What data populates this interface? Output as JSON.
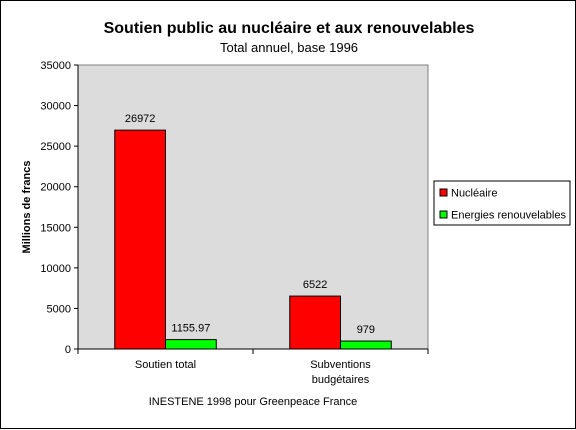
{
  "chart_data": {
    "type": "bar",
    "title": "Soutien public au nucléaire et aux renouvelables",
    "subtitle": "Total annuel, base 1996",
    "ylabel": "Millions de francs",
    "xlabel": "",
    "categories": [
      [
        "Soutien total"
      ],
      [
        "Subventions",
        "budgétaires"
      ]
    ],
    "series": [
      {
        "name": "Nucléaire",
        "color": "#ff0000",
        "values": [
          26972,
          6522
        ],
        "labels": [
          "26972",
          "6522"
        ]
      },
      {
        "name": "Energies renouvelables",
        "color": "#00ff00",
        "values": [
          1155.97,
          979
        ],
        "labels": [
          "1155.97",
          "979"
        ]
      }
    ],
    "ylim": [
      0,
      35000
    ],
    "yticks": [
      "0",
      "5000",
      "10000",
      "15000",
      "20000",
      "25000",
      "30000",
      "35000"
    ],
    "plot_background": "#dcdcdc",
    "grid": false,
    "legend_position": "right",
    "source": "INESTENE 1998 pour Greenpeace France"
  }
}
